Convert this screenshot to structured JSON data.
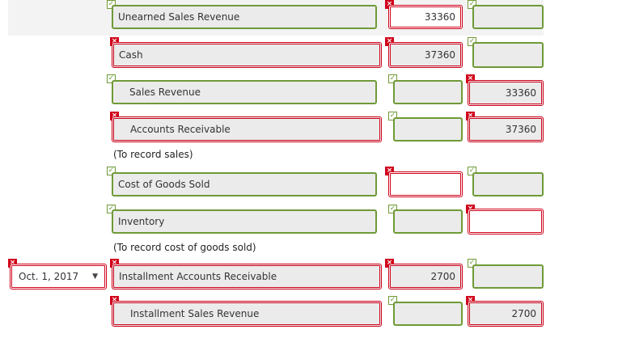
{
  "entries": [
    {
      "account": "Unearned Sales Revenue",
      "debit": "33360",
      "credit": ""
    },
    {
      "account": "Cash",
      "debit": "37360",
      "credit": ""
    },
    {
      "account": "Sales Revenue",
      "debit": "",
      "credit": "33360"
    },
    {
      "account": "Accounts Receivable",
      "debit": "",
      "credit": "37360"
    },
    {
      "account": "Cost of Goods Sold",
      "debit": "",
      "credit": ""
    },
    {
      "account": "Inventory",
      "debit": "",
      "credit": ""
    },
    {
      "account": "Installment Accounts Receivable",
      "debit": "2700",
      "credit": ""
    },
    {
      "account": "Installment Sales Revenue",
      "debit": "",
      "credit": "2700"
    }
  ],
  "notes": {
    "sales": "(To record sales)",
    "cogs": "(To record cost of goods sold)"
  },
  "date_select": {
    "value": "Oct. 1, 2017"
  },
  "marks": {
    "correct": "✓",
    "incorrect": "×"
  },
  "colors": {
    "correct": "#6f9a37",
    "incorrect": "#d0021b",
    "field_bg": "#ebebeb"
  }
}
